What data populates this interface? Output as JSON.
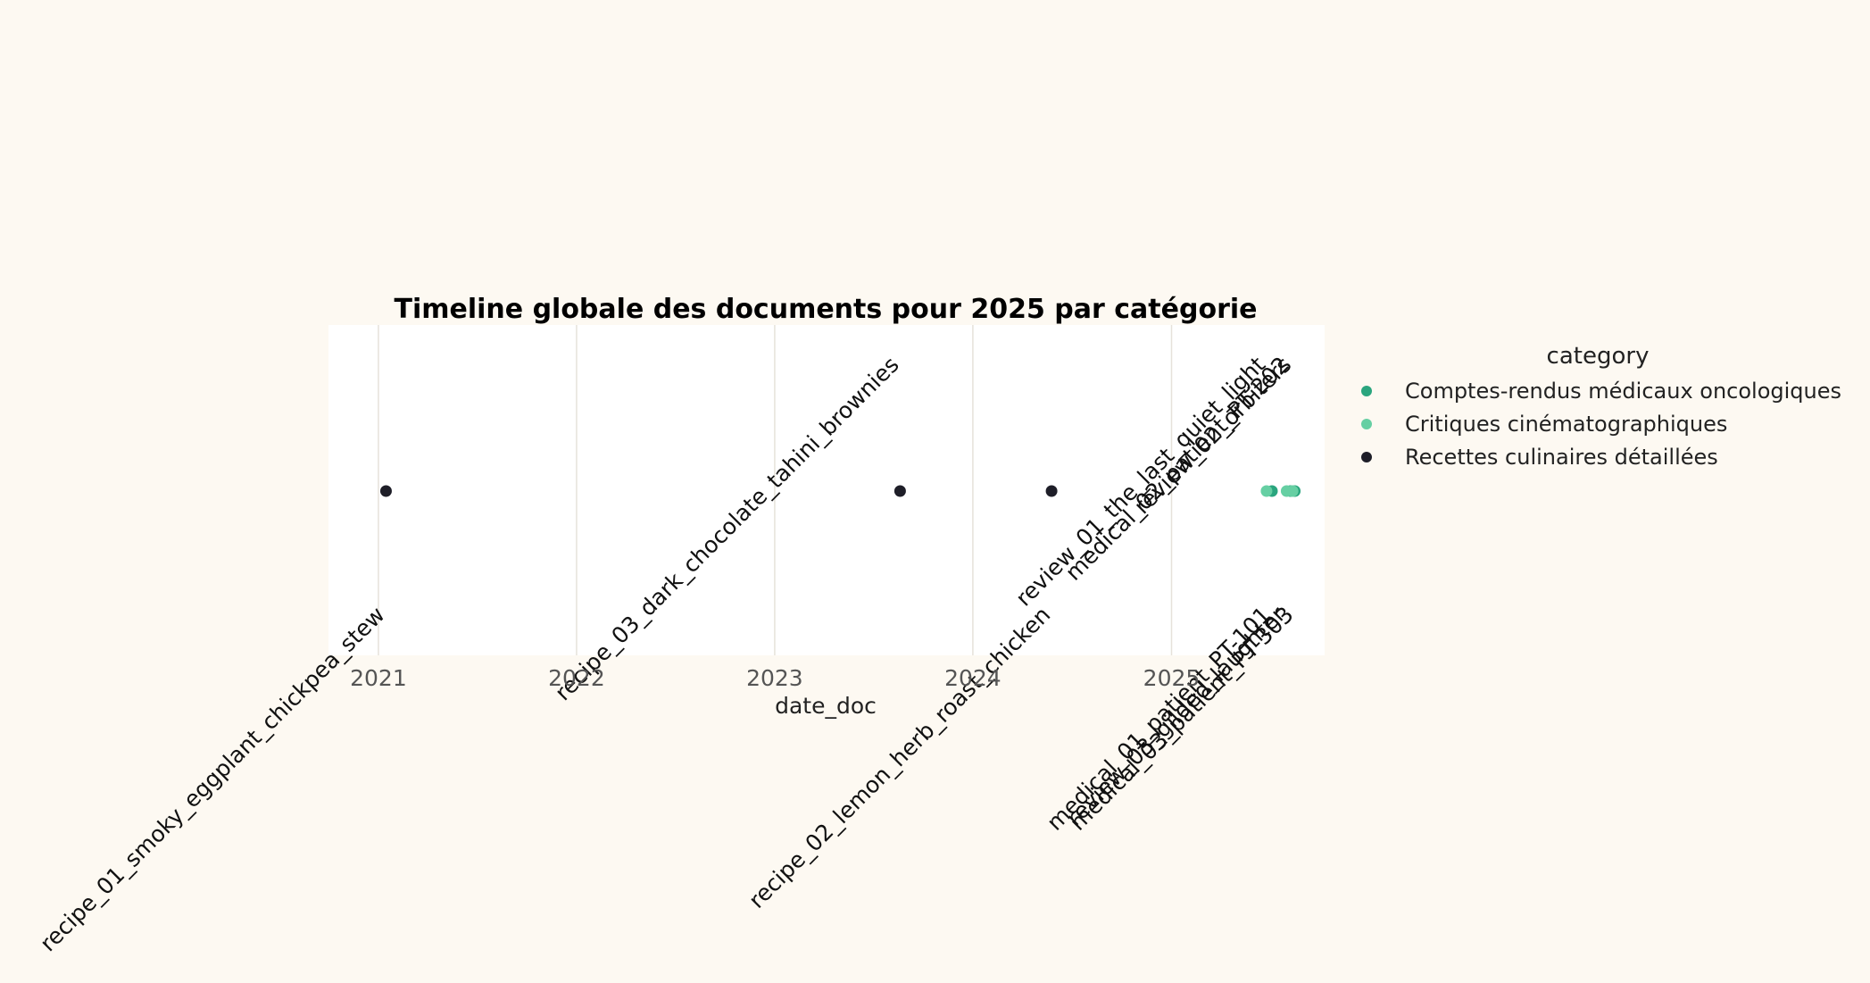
{
  "chart_data": {
    "type": "scatter",
    "title": "Timeline globale des documents pour 2025 par catégorie",
    "xlabel": "date_doc",
    "ylabel": "",
    "x_axis": {
      "type": "date",
      "range": [
        "2020-10-01",
        "2025-10-10"
      ],
      "ticks": [
        "2021",
        "2022",
        "2023",
        "2024",
        "2025"
      ]
    },
    "grid": "vertical",
    "legend": {
      "title": "category",
      "placement": "right",
      "entries": [
        {
          "label": "Comptes-rendus médicaux oncologiques",
          "color": "#2aa57e"
        },
        {
          "label": "Critiques cinématographiques",
          "color": "#66cfa3"
        },
        {
          "label": "Recettes culinaires détaillées",
          "color": "#1e1e28"
        }
      ]
    },
    "series": [
      {
        "name": "Comptes-rendus médicaux oncologiques",
        "color": "#2aa57e",
        "points": [
          {
            "x": "2025-07-05",
            "label": "medical_01_patient_PT-101"
          },
          {
            "x": "2025-08-08",
            "label": "medical_02_patient_PT-202"
          },
          {
            "x": "2025-08-16",
            "label": "medical_03_patient_PT-303"
          }
        ]
      },
      {
        "name": "Critiques cinématographiques",
        "color": "#66cfa3",
        "points": [
          {
            "x": "2025-06-25",
            "label": "review_01_the_last_quiet_light"
          },
          {
            "x": "2025-08-01",
            "label": "review_03_gilded_laughter"
          },
          {
            "x": "2025-08-12",
            "label": "review_02_orbiters"
          }
        ]
      },
      {
        "name": "Recettes culinaires détaillées",
        "color": "#1e1e28",
        "points": [
          {
            "x": "2021-01-15",
            "label": "recipe_01_smoky_eggplant_chickpea_stew"
          },
          {
            "x": "2023-08-20",
            "label": "recipe_03_dark_chocolate_tahini_brownies"
          },
          {
            "x": "2024-05-25",
            "label": "recipe_02_lemon_herb_roast_chicken"
          }
        ]
      }
    ]
  }
}
